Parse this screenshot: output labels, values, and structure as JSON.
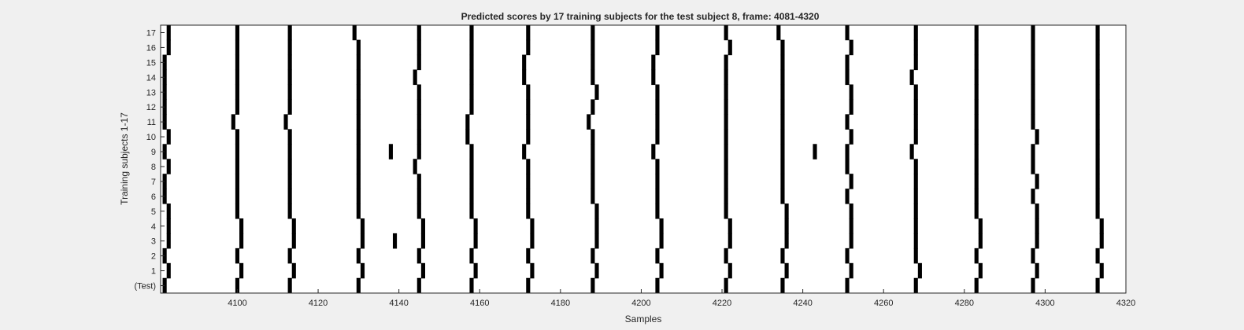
{
  "chart_data": {
    "type": "heatmap",
    "title": "Predicted scores by 17 training subjects for the test subject 8, frame: 4081-4320",
    "xlabel": "Samples",
    "ylabel": "Training subjects 1-17",
    "xlim": [
      4081,
      4320
    ],
    "xticks": [
      4100,
      4120,
      4140,
      4160,
      4180,
      4200,
      4220,
      4240,
      4260,
      4280,
      4300,
      4320
    ],
    "rows": [
      "(Test)",
      "1",
      "2",
      "3",
      "4",
      "5",
      "6",
      "7",
      "8",
      "9",
      "10",
      "11",
      "12",
      "13",
      "14",
      "15",
      "16",
      "17"
    ],
    "colors": {
      "mark": "#000000",
      "background": "#ffffff",
      "figure": "#f0f0f0",
      "axis": "#262626"
    },
    "grid": false,
    "legend": "none",
    "marks": [
      {
        "row": "(Test)",
        "x": [
          4082,
          4100,
          4113,
          4130,
          4145,
          4158,
          4172,
          4188,
          4204,
          4221,
          4235,
          4251,
          4268,
          4283,
          4297,
          4313
        ]
      },
      {
        "row": "1",
        "x": [
          4083,
          4101,
          4114,
          4131,
          4146,
          4159,
          4173,
          4189,
          4205,
          4222,
          4236,
          4252,
          4269,
          4284,
          4298,
          4314
        ]
      },
      {
        "row": "2",
        "x": [
          4082,
          4100,
          4113,
          4130,
          4145,
          4158,
          4172,
          4188,
          4204,
          4221,
          4235,
          4251,
          4268,
          4283,
          4297,
          4313
        ]
      },
      {
        "row": "3",
        "x": [
          4083,
          4101,
          4114,
          4131,
          4139,
          4146,
          4159,
          4173,
          4189,
          4205,
          4222,
          4236,
          4252,
          4268,
          4284,
          4298,
          4314
        ]
      },
      {
        "row": "4",
        "x": [
          4083,
          4101,
          4114,
          4131,
          4146,
          4159,
          4173,
          4189,
          4205,
          4222,
          4236,
          4252,
          4268,
          4284,
          4298,
          4314
        ]
      },
      {
        "row": "5",
        "x": [
          4083,
          4100,
          4113,
          4130,
          4145,
          4158,
          4172,
          4189,
          4204,
          4221,
          4236,
          4252,
          4268,
          4283,
          4298,
          4313
        ]
      },
      {
        "row": "6",
        "x": [
          4082,
          4100,
          4113,
          4130,
          4145,
          4158,
          4172,
          4188,
          4204,
          4221,
          4235,
          4251,
          4268,
          4283,
          4297,
          4313
        ]
      },
      {
        "row": "7",
        "x": [
          4082,
          4100,
          4113,
          4130,
          4145,
          4158,
          4172,
          4188,
          4204,
          4221,
          4235,
          4252,
          4268,
          4283,
          4298,
          4313
        ]
      },
      {
        "row": "8",
        "x": [
          4083,
          4100,
          4113,
          4130,
          4144,
          4158,
          4172,
          4188,
          4204,
          4221,
          4235,
          4251,
          4268,
          4283,
          4297,
          4313
        ]
      },
      {
        "row": "9",
        "x": [
          4082,
          4100,
          4113,
          4130,
          4138,
          4145,
          4158,
          4171,
          4188,
          4203,
          4221,
          4235,
          4243,
          4251,
          4267,
          4283,
          4297,
          4313
        ]
      },
      {
        "row": "10",
        "x": [
          4083,
          4100,
          4113,
          4130,
          4145,
          4157,
          4172,
          4188,
          4204,
          4221,
          4235,
          4252,
          4268,
          4283,
          4298,
          4313
        ]
      },
      {
        "row": "11",
        "x": [
          4082,
          4099,
          4112,
          4130,
          4145,
          4157,
          4172,
          4187,
          4204,
          4221,
          4235,
          4251,
          4268,
          4283,
          4297,
          4313
        ]
      },
      {
        "row": "12",
        "x": [
          4082,
          4100,
          4113,
          4130,
          4145,
          4158,
          4172,
          4188,
          4204,
          4221,
          4235,
          4252,
          4268,
          4283,
          4297,
          4313
        ]
      },
      {
        "row": "13",
        "x": [
          4082,
          4100,
          4113,
          4130,
          4145,
          4158,
          4172,
          4189,
          4204,
          4221,
          4235,
          4252,
          4268,
          4283,
          4297,
          4313
        ]
      },
      {
        "row": "14",
        "x": [
          4082,
          4100,
          4113,
          4130,
          4144,
          4158,
          4171,
          4188,
          4203,
          4221,
          4235,
          4251,
          4267,
          4283,
          4297,
          4313
        ]
      },
      {
        "row": "15",
        "x": [
          4082,
          4100,
          4113,
          4130,
          4145,
          4158,
          4171,
          4188,
          4203,
          4221,
          4235,
          4251,
          4268,
          4283,
          4297,
          4313
        ]
      },
      {
        "row": "16",
        "x": [
          4083,
          4100,
          4113,
          4130,
          4145,
          4158,
          4172,
          4188,
          4204,
          4222,
          4235,
          4252,
          4268,
          4283,
          4297,
          4313
        ]
      },
      {
        "row": "17",
        "x": [
          4083,
          4100,
          4113,
          4129,
          4145,
          4158,
          4172,
          4188,
          4204,
          4221,
          4234,
          4251,
          4268,
          4283,
          4297,
          4313
        ]
      }
    ]
  }
}
